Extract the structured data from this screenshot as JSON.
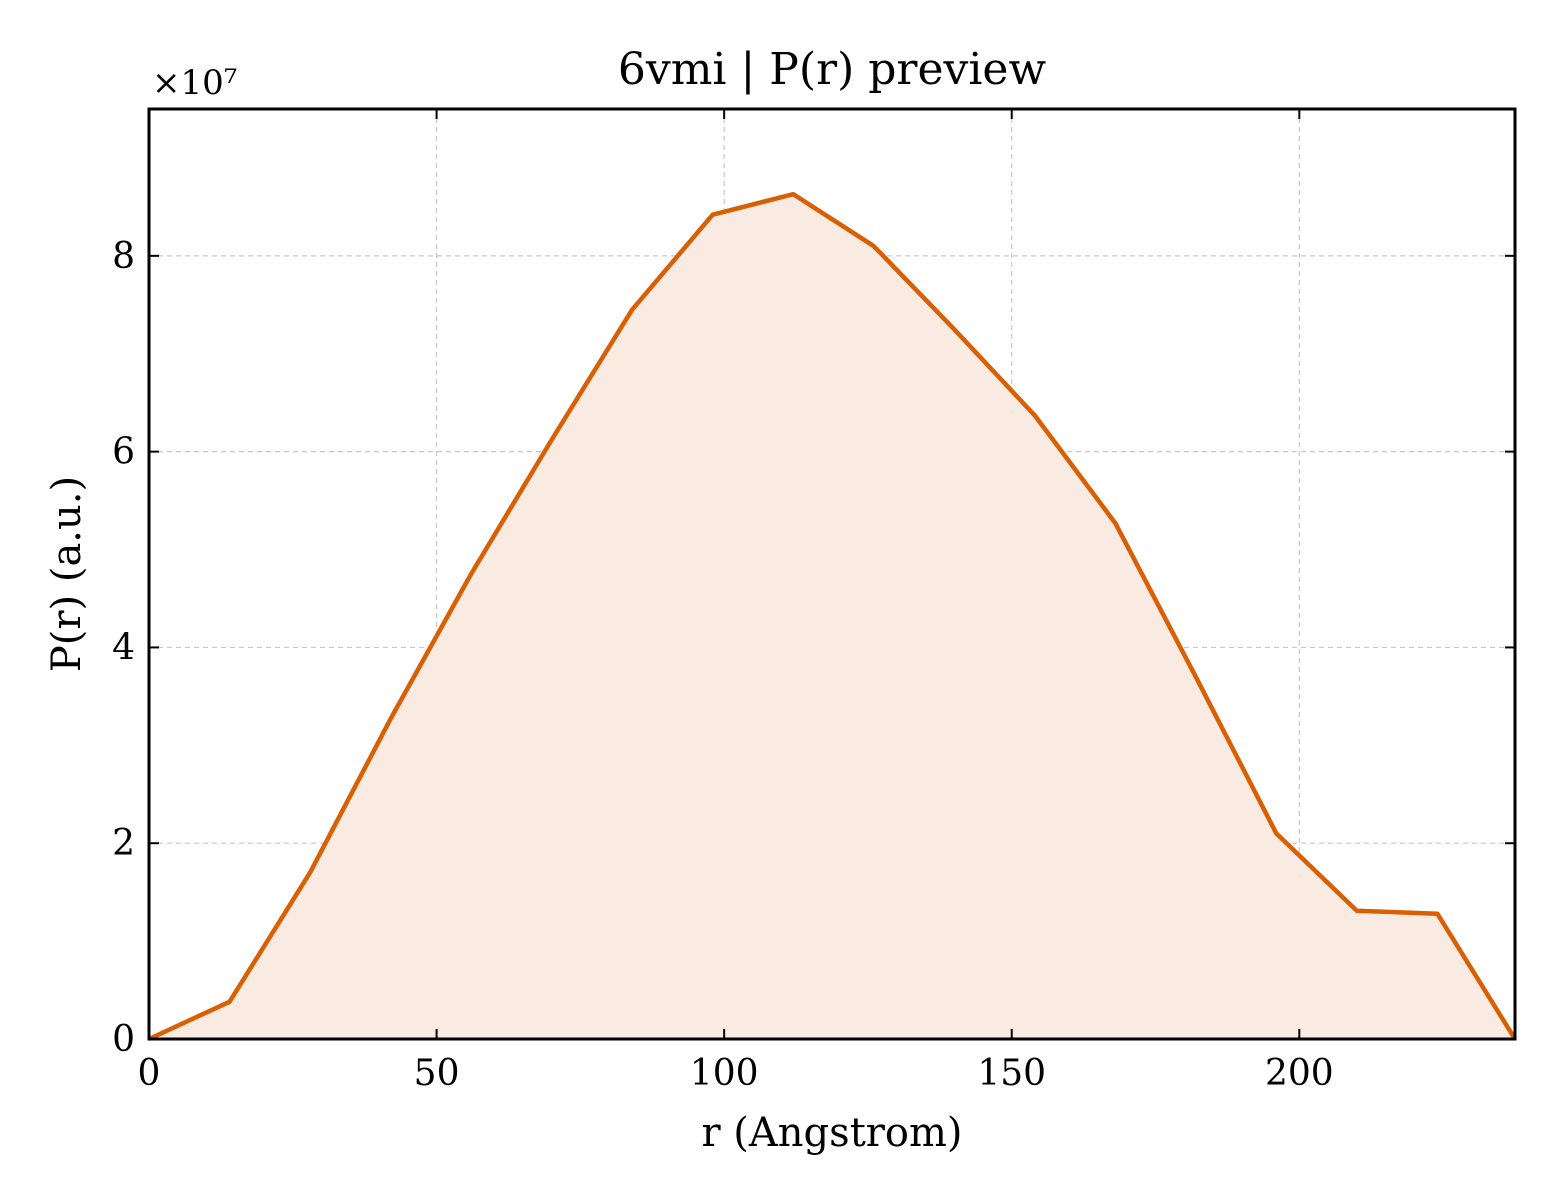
{
  "chart_data": {
    "type": "area",
    "title": "6vmi | P(r) preview",
    "xlabel": "r (Angstrom)",
    "ylabel": "P(r) (a.u.)",
    "y_offset_label": "×10⁷",
    "y_multiplier": 10000000,
    "xlim": [
      0,
      237.5
    ],
    "ylim": [
      0,
      9.5
    ],
    "x_ticks": [
      0,
      50,
      100,
      150,
      200
    ],
    "y_ticks": [
      0,
      2,
      4,
      6,
      8
    ],
    "grid": true,
    "line_color": "#d95f02",
    "fill_color": "#f9ebe1",
    "series": [
      {
        "x": [
          0,
          14,
          28,
          42,
          56,
          70,
          84,
          98,
          112,
          126,
          140,
          154,
          168,
          182,
          196,
          210,
          224,
          237.5
        ],
        "y": [
          0,
          0.38,
          1.7,
          3.27,
          4.75,
          6.12,
          7.45,
          8.42,
          8.63,
          8.1,
          7.25,
          6.37,
          5.27,
          3.7,
          2.1,
          1.31,
          1.28,
          0
        ]
      }
    ]
  }
}
